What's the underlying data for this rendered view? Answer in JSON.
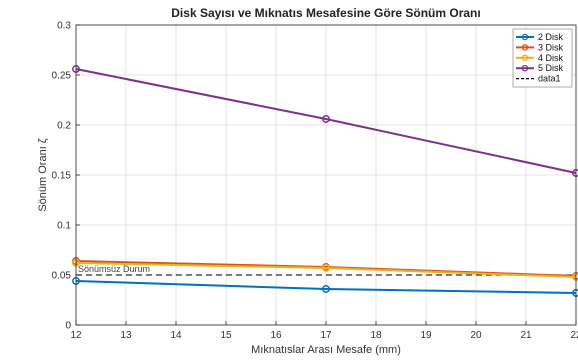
{
  "chart_data": {
    "type": "line",
    "title": "Disk Sayısı ve Mıknatıs Mesafesine Göre Sönüm Oranı",
    "xlabel": "Mıknatıslar Arası Mesafe (mm)",
    "ylabel": "Sönüm Oranı ζ",
    "xlim": [
      12,
      22
    ],
    "ylim": [
      0,
      0.3
    ],
    "xticks": [
      12,
      13,
      14,
      15,
      16,
      17,
      18,
      19,
      20,
      21,
      22
    ],
    "yticks": [
      0,
      0.05,
      0.1,
      0.15,
      0.2,
      0.25,
      0.3
    ],
    "grid": true,
    "legend_position": "top-right",
    "series": [
      {
        "name": "2 Disk",
        "color": "#0072BD",
        "x": [
          12,
          17,
          22
        ],
        "y": [
          0.044,
          0.036,
          0.032
        ]
      },
      {
        "name": "3 Disk",
        "color": "#D95319",
        "x": [
          12,
          17,
          22
        ],
        "y": [
          0.064,
          0.058,
          0.049
        ]
      },
      {
        "name": "4 Disk",
        "color": "#EDB120",
        "x": [
          12,
          17,
          22
        ],
        "y": [
          0.062,
          0.057,
          0.048
        ]
      },
      {
        "name": "5 Disk",
        "color": "#7E2F8E",
        "x": [
          12,
          17,
          22
        ],
        "y": [
          0.256,
          0.206,
          0.152
        ]
      }
    ],
    "reference_line": {
      "name": "data1",
      "y": 0.05,
      "color": "#000000",
      "style": "dashed"
    },
    "annotations": [
      {
        "text": "Sönümsüz Durum",
        "x": 12,
        "y": 0.05
      }
    ]
  }
}
